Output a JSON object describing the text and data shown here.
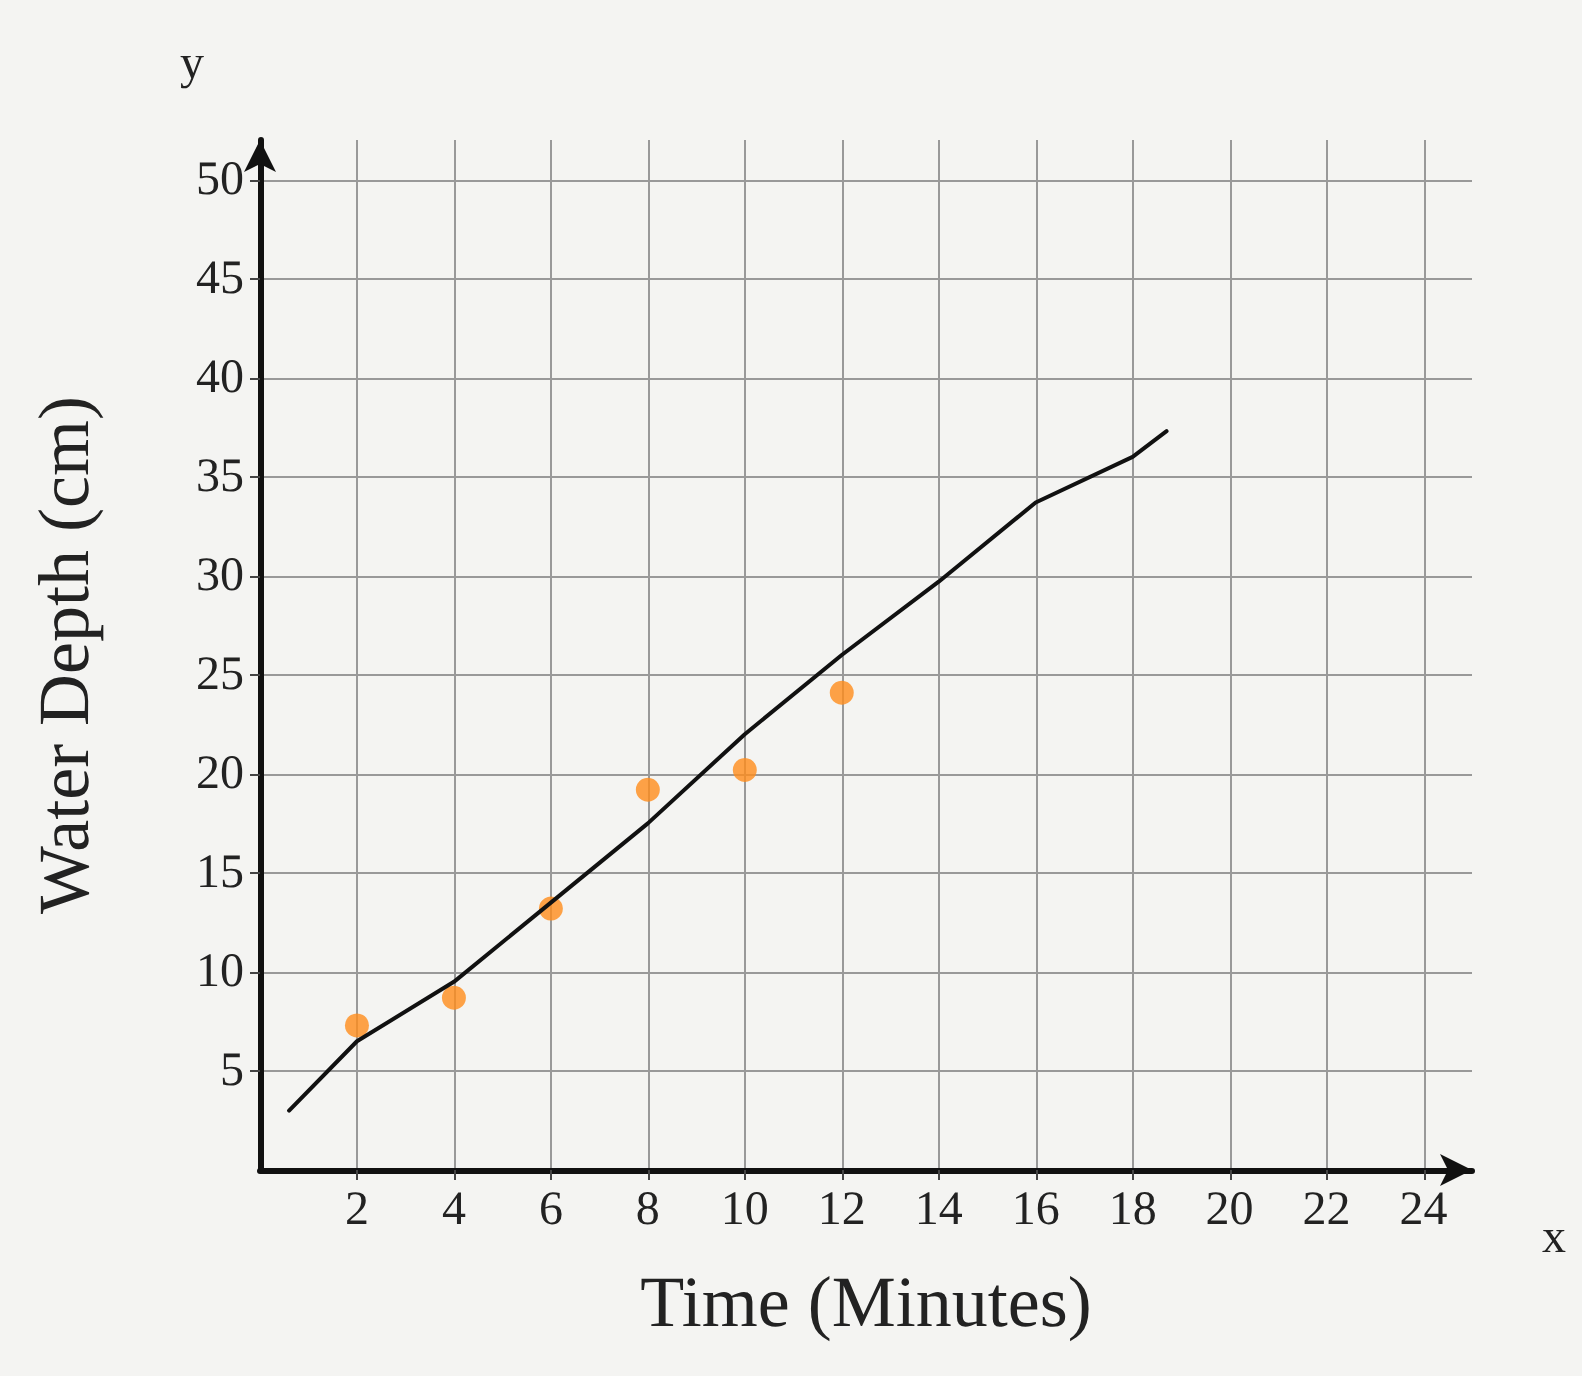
{
  "chart_data": {
    "type": "scatter",
    "xlabel": "Time (Minutes)",
    "ylabel": "Water Depth (cm)",
    "annotations": [
      "x",
      "y"
    ],
    "xlim": [
      0,
      25
    ],
    "ylim": [
      0,
      52
    ],
    "xticks": [
      2,
      4,
      6,
      8,
      10,
      12,
      14,
      16,
      18,
      20,
      22,
      24
    ],
    "yticks": [
      5,
      10,
      15,
      20,
      25,
      30,
      35,
      40,
      45,
      50
    ],
    "grid": true,
    "series": [
      {
        "color": "#ff8c1a",
        "marker": "circle",
        "x": [
          2,
          4,
          6,
          8,
          10,
          12
        ],
        "values": [
          7.3,
          8.7,
          13.2,
          19.2,
          20.2,
          24.1
        ]
      },
      {
        "type": "line",
        "color": "#111111",
        "marker": "none",
        "x": [
          0.6,
          2,
          4,
          6,
          8,
          10,
          12,
          14,
          16,
          18,
          18.7
        ],
        "values": [
          3,
          6.5,
          9.5,
          13.5,
          17.5,
          22,
          26,
          29.7,
          33.7,
          36,
          37.3
        ]
      }
    ]
  }
}
